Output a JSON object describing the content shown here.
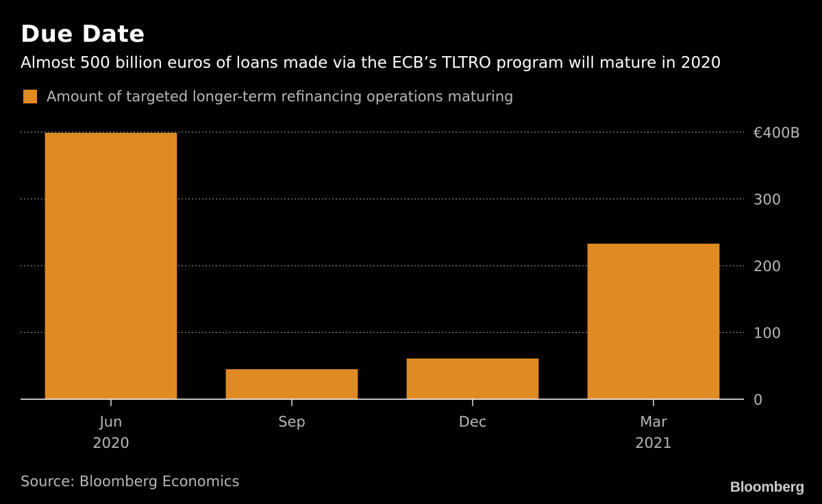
{
  "header": {
    "title": "Due Date",
    "subtitle": "Almost 500 billion euros of loans made via the ECB’s TLTRO program will mature in 2020"
  },
  "legend": {
    "label": "Amount of targeted longer-term refinancing operations maturing",
    "color": "#e08a24"
  },
  "footer": {
    "source": "Source: Bloomberg Economics",
    "brand": "Bloomberg"
  },
  "chart_data": {
    "type": "bar",
    "categories": [
      "Jun",
      "Sep",
      "Dec",
      "Mar"
    ],
    "category_sublabels": [
      "2020",
      "",
      "",
      "2021"
    ],
    "values": [
      399,
      45,
      61,
      233
    ],
    "ylim": [
      0,
      400
    ],
    "yticks": [
      {
        "value": 0,
        "label": "0"
      },
      {
        "value": 100,
        "label": "100"
      },
      {
        "value": 200,
        "label": "200"
      },
      {
        "value": 300,
        "label": "300"
      },
      {
        "value": 400,
        "label": "€400B"
      }
    ],
    "grid": true,
    "y_axis_side": "right",
    "bar_color": "#e08a24",
    "grid_color": "#8a8a8a",
    "axis_label_color": "#b8b8b8"
  }
}
